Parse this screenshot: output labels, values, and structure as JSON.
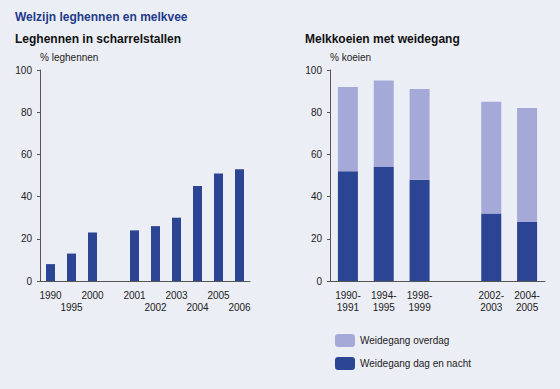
{
  "title": "Welzijn leghennen en melkvee",
  "chart_data": [
    {
      "type": "bar",
      "title": "Leghennen in scharrelstallen",
      "ylabel": "% leghennen",
      "categories": [
        "1990",
        "1995",
        "2000",
        null,
        "2001",
        "2002",
        "2003",
        "2004",
        "2005",
        "2006"
      ],
      "values": [
        8,
        13,
        23,
        null,
        24,
        26,
        30,
        45,
        51,
        53
      ],
      "color": "#2b4594",
      "ylim": [
        0,
        100
      ],
      "yticks": [
        0,
        20,
        40,
        60,
        80,
        100
      ],
      "grid": false
    },
    {
      "type": "bar",
      "title": "Melkkoeien met weidegang",
      "ylabel": "% koeien",
      "categories": [
        "1990-1991",
        "1994-1995",
        "1998-1999",
        null,
        "2002-2003",
        "2004-2005"
      ],
      "series": [
        {
          "name": "Weidegang dag en nacht",
          "color": "#2b4594",
          "values": [
            52,
            54,
            48,
            null,
            32,
            28
          ]
        },
        {
          "name": "Weidegang overdag",
          "color": "#a4a9d8",
          "values": [
            40,
            41,
            43,
            null,
            53,
            54
          ]
        }
      ],
      "stacked": true,
      "legend": "bottom",
      "ylim": [
        0,
        100
      ],
      "yticks": [
        0,
        20,
        40,
        60,
        80,
        100
      ],
      "grid": false
    }
  ]
}
